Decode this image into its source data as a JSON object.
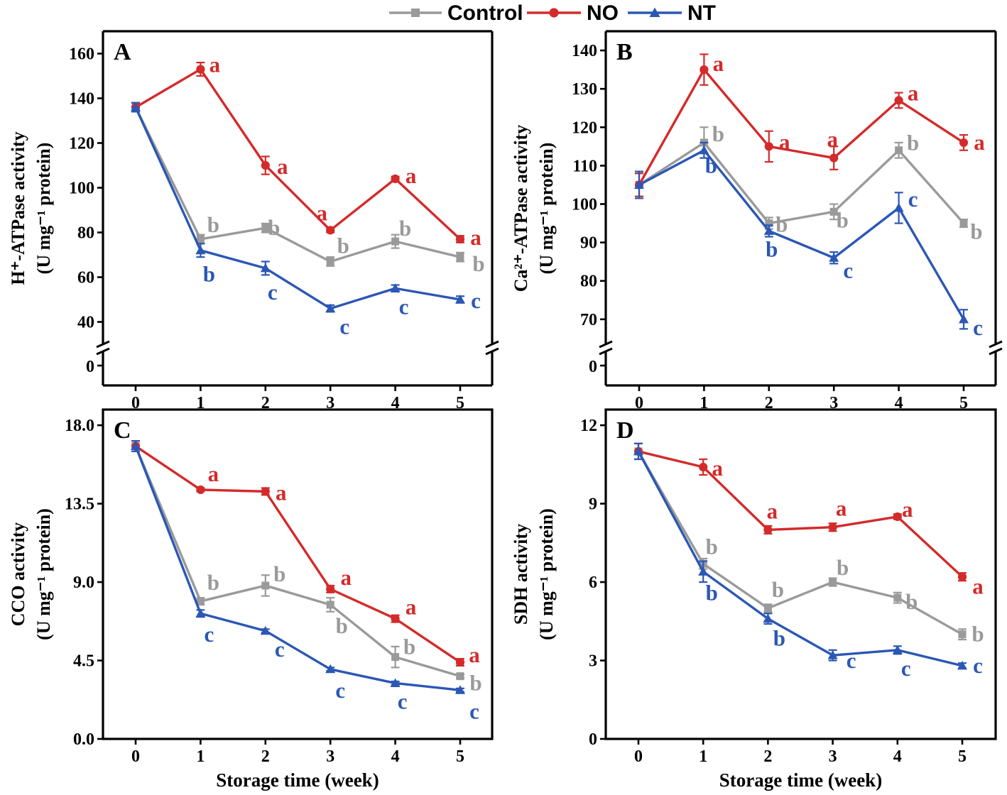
{
  "legend": {
    "items": [
      {
        "name": "Control",
        "color": "#9a9a9a",
        "marker": "square"
      },
      {
        "name": "NO",
        "color": "#d42a2a",
        "marker": "circle"
      },
      {
        "name": "NT",
        "color": "#2b57b5",
        "marker": "triangle"
      }
    ]
  },
  "chart_data": [
    {
      "type": "line",
      "panel": "A",
      "ylabel_lines": [
        "H⁺-ATPase activity",
        "(U mg⁻¹ protein)"
      ],
      "xlabel": "",
      "x": [
        0,
        1,
        2,
        3,
        4,
        5
      ],
      "xticks": [
        "0",
        "1",
        "2",
        "3",
        "4",
        "5"
      ],
      "ylim": [
        30,
        170
      ],
      "yticks": [
        40,
        60,
        80,
        100,
        120,
        140,
        160
      ],
      "ytick_labels": [
        "40",
        "60",
        "80",
        "100",
        "120",
        "140",
        "160"
      ],
      "axis_break": true,
      "break_label": "0",
      "series": [
        {
          "name": "Control",
          "values": [
            136,
            77,
            82,
            67,
            76,
            69
          ],
          "errors": [
            2,
            2,
            2,
            2,
            3,
            2
          ],
          "letters": [
            "",
            "b",
            "b",
            "b",
            "b",
            "b"
          ]
        },
        {
          "name": "NO",
          "values": [
            136,
            153,
            110,
            81,
            104,
            77
          ],
          "errors": [
            2,
            3,
            4,
            1,
            1,
            1.5
          ],
          "letters": [
            "",
            "a",
            "a",
            "a",
            "a",
            "a"
          ]
        },
        {
          "name": "NT",
          "values": [
            136,
            72,
            64,
            46,
            55,
            50
          ],
          "errors": [
            2,
            3,
            3,
            1.5,
            1.5,
            1.5
          ],
          "letters": [
            "",
            "b",
            "c",
            "c",
            "c",
            "c"
          ]
        }
      ]
    },
    {
      "type": "line",
      "panel": "B",
      "ylabel_lines": [
        "Ca²⁺-ATPase activity",
        "(U mg⁻¹ protein)"
      ],
      "xlabel": "",
      "x": [
        0,
        1,
        2,
        3,
        4,
        5
      ],
      "xticks": [
        "0",
        "1",
        "2",
        "3",
        "4",
        "5"
      ],
      "ylim": [
        63.5,
        145
      ],
      "yticks": [
        70,
        80,
        90,
        100,
        110,
        120,
        130,
        140
      ],
      "ytick_labels": [
        "70",
        "80",
        "90",
        "100",
        "110",
        "120",
        "130",
        "140"
      ],
      "axis_break": true,
      "break_label": "0",
      "series": [
        {
          "name": "Control",
          "values": [
            105,
            116,
            95,
            98,
            114,
            95
          ],
          "errors": [
            3,
            4,
            1.5,
            2,
            2,
            1
          ],
          "letters": [
            "",
            "b",
            "b",
            "b",
            "b",
            "b"
          ]
        },
        {
          "name": "NO",
          "values": [
            105,
            135,
            115,
            112,
            127,
            116
          ],
          "errors": [
            3,
            4,
            4,
            3,
            2,
            2
          ],
          "letters": [
            "",
            "a",
            "a",
            "a",
            "a",
            "a"
          ]
        },
        {
          "name": "NT",
          "values": [
            105,
            114,
            93,
            86,
            99,
            70
          ],
          "errors": [
            3.5,
            2,
            1.5,
            1.5,
            4,
            2.5
          ],
          "letters": [
            "",
            "b",
            "b",
            "c",
            "c",
            "c"
          ]
        }
      ]
    },
    {
      "type": "line",
      "panel": "C",
      "ylabel_lines": [
        "CCO activity",
        "(U mg⁻¹ protein)"
      ],
      "xlabel": "Storage time (week)",
      "x": [
        0,
        1,
        2,
        3,
        4,
        5
      ],
      "xticks": [
        "0",
        "1",
        "2",
        "3",
        "4",
        "5"
      ],
      "ylim": [
        0,
        18.9
      ],
      "yticks": [
        0,
        4.5,
        9,
        13.5,
        18
      ],
      "ytick_labels": [
        "0.0",
        "4.5",
        "9.0",
        "13.5",
        "18.0"
      ],
      "axis_break": false,
      "series": [
        {
          "name": "Control",
          "values": [
            16.8,
            7.9,
            8.8,
            7.7,
            4.7,
            3.6
          ],
          "errors": [
            0.3,
            0.2,
            0.6,
            0.4,
            0.6,
            0.1
          ],
          "letters": [
            "",
            "b",
            "b",
            "b",
            "b",
            "b"
          ]
        },
        {
          "name": "NO",
          "values": [
            16.8,
            14.3,
            14.2,
            8.6,
            6.9,
            4.4
          ],
          "errors": [
            0.3,
            0.1,
            0.2,
            0.2,
            0.2,
            0.2
          ],
          "letters": [
            "",
            "a",
            "a",
            "a",
            "a",
            "a"
          ]
        },
        {
          "name": "NT",
          "values": [
            16.8,
            7.2,
            6.2,
            4.0,
            3.2,
            2.8
          ],
          "errors": [
            0.3,
            0.2,
            0.1,
            0.1,
            0.1,
            0.1
          ],
          "letters": [
            "",
            "c",
            "c",
            "c",
            "c",
            "c"
          ]
        }
      ]
    },
    {
      "type": "line",
      "panel": "D",
      "ylabel_lines": [
        "SDH activity",
        "(U mg⁻¹ protein)"
      ],
      "xlabel": "Storage time (week)",
      "x": [
        0,
        1,
        2,
        3,
        4,
        5
      ],
      "xticks": [
        "0",
        "1",
        "2",
        "3",
        "4",
        "5"
      ],
      "ylim": [
        0,
        12.6
      ],
      "yticks": [
        0,
        3,
        6,
        9,
        12
      ],
      "ytick_labels": [
        "0",
        "3",
        "6",
        "9",
        "12"
      ],
      "axis_break": false,
      "series": [
        {
          "name": "Control",
          "values": [
            11.0,
            6.7,
            5.0,
            6.0,
            5.4,
            4.0
          ],
          "errors": [
            0.3,
            0.2,
            0.15,
            0.15,
            0.2,
            0.2
          ],
          "letters": [
            "",
            "b",
            "b",
            "b",
            "b",
            "b"
          ]
        },
        {
          "name": "NO",
          "values": [
            11.0,
            10.4,
            8.0,
            8.1,
            8.5,
            6.2
          ],
          "errors": [
            0.3,
            0.3,
            0.15,
            0.15,
            0.1,
            0.15
          ],
          "letters": [
            "",
            "a",
            "a",
            "a",
            "a",
            "a"
          ]
        },
        {
          "name": "NT",
          "values": [
            11.0,
            6.4,
            4.6,
            3.2,
            3.4,
            2.8
          ],
          "errors": [
            0.3,
            0.4,
            0.2,
            0.2,
            0.15,
            0.1
          ],
          "letters": [
            "",
            "b",
            "b",
            "c",
            "c",
            "c"
          ]
        }
      ]
    }
  ]
}
